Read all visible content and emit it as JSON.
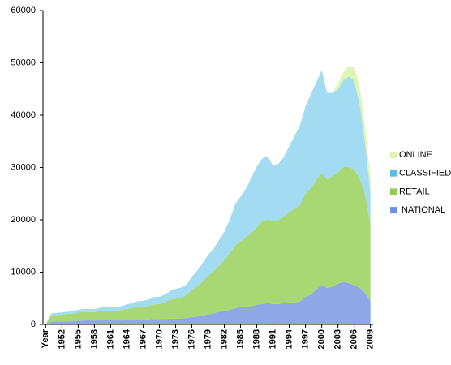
{
  "chart_data": {
    "type": "stacked-area",
    "categories": [
      "Year",
      null,
      null,
      "1952",
      null,
      null,
      "1955",
      null,
      null,
      "1958",
      null,
      null,
      "1961",
      null,
      null,
      "1964",
      null,
      null,
      "1967",
      null,
      null,
      "1970",
      null,
      null,
      "1973",
      null,
      null,
      "1976",
      null,
      null,
      "1979",
      null,
      null,
      "1982",
      null,
      null,
      "1985",
      null,
      null,
      "1988",
      null,
      null,
      "1991",
      null,
      null,
      "1994",
      null,
      null,
      "1997",
      null,
      null,
      "2000",
      null,
      null,
      "2003",
      null,
      null,
      "2006",
      null,
      null,
      "2009"
    ],
    "series": [
      {
        "name": "NATIONAL",
        "color": "#8ea7e6",
        "values": [
          0,
          530,
          550,
          570,
          610,
          610,
          710,
          760,
          770,
          750,
          800,
          830,
          780,
          790,
          760,
          830,
          880,
          950,
          920,
          960,
          1050,
          1000,
          1000,
          1100,
          1100,
          1150,
          1200,
          1400,
          1500,
          1700,
          1900,
          2100,
          2400,
          2500,
          2800,
          3100,
          3300,
          3400,
          3500,
          3800,
          3900,
          4100,
          3900,
          3900,
          4100,
          4200,
          4200,
          4400,
          5300,
          5700,
          6700,
          7600,
          7000,
          7200,
          7800,
          8100,
          7900,
          7500,
          7000,
          6000,
          4400
        ]
      },
      {
        "name": "RETAIL",
        "color": "#a8d874",
        "values": [
          0,
          1200,
          1260,
          1320,
          1400,
          1440,
          1560,
          1620,
          1600,
          1600,
          1750,
          1800,
          1800,
          1860,
          1950,
          2100,
          2250,
          2400,
          2480,
          2600,
          2800,
          2900,
          3200,
          3600,
          3800,
          4000,
          4400,
          5200,
          5800,
          6500,
          7400,
          8100,
          8800,
          9800,
          10800,
          12000,
          12600,
          13300,
          14000,
          14800,
          15800,
          16000,
          15800,
          16000,
          16600,
          17300,
          17900,
          18500,
          19700,
          20400,
          21000,
          21400,
          20700,
          21200,
          21300,
          22000,
          22200,
          22100,
          21000,
          18800,
          14900
        ]
      },
      {
        "name": "CLASSIFIED",
        "color": "#a3dbf3",
        "values": [
          0,
          350,
          390,
          400,
          420,
          430,
          520,
          590,
          580,
          550,
          650,
          700,
          700,
          740,
          780,
          880,
          1000,
          1100,
          1100,
          1200,
          1400,
          1400,
          1500,
          1700,
          1900,
          1900,
          2000,
          2500,
          3000,
          3500,
          4000,
          4200,
          4900,
          5400,
          6400,
          7900,
          8500,
          9300,
          10500,
          11600,
          12000,
          12100,
          10600,
          10800,
          11300,
          12600,
          14000,
          15200,
          16700,
          17900,
          18600,
          19600,
          16600,
          15800,
          15800,
          16600,
          17300,
          17000,
          14200,
          9900,
          6000
        ]
      },
      {
        "name": "ONLINE",
        "color": "#ddf6b4",
        "values": [
          0,
          0,
          0,
          0,
          0,
          0,
          0,
          0,
          0,
          0,
          0,
          0,
          0,
          0,
          0,
          0,
          0,
          0,
          0,
          0,
          0,
          0,
          0,
          0,
          0,
          0,
          0,
          0,
          0,
          0,
          0,
          0,
          0,
          0,
          0,
          0,
          0,
          0,
          0,
          0,
          0,
          0,
          0,
          0,
          0,
          0,
          0,
          0,
          0,
          0,
          0,
          0,
          0,
          0,
          1200,
          1500,
          2000,
          2700,
          3200,
          3100,
          2700
        ]
      }
    ],
    "legend_colors": [
      "#ddf6b4",
      "#5bbde0",
      "#8fcc4f",
      "#6f8fe0"
    ],
    "ylim": [
      0,
      60000
    ],
    "yticks": [
      0,
      10000,
      20000,
      30000,
      40000,
      50000,
      60000
    ],
    "grid": false,
    "legend": "right"
  }
}
